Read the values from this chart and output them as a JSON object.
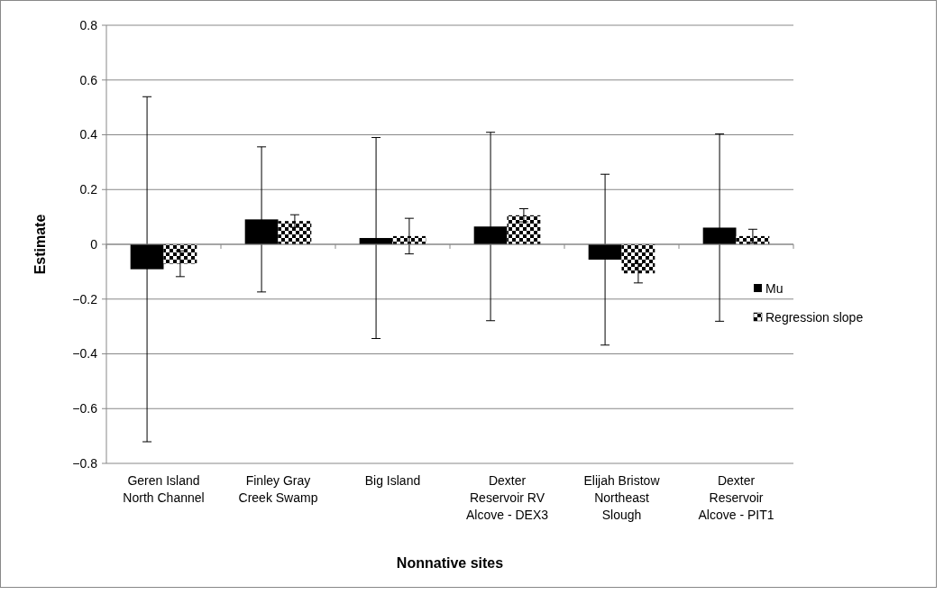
{
  "chart_data": {
    "type": "bar",
    "xlabel": "Nonnative sites",
    "ylabel": "Estimate",
    "categories": [
      "Geren Island North Channel",
      "Finley Gray Creek Swamp",
      "Big Island",
      "Dexter Reservoir RV Alcove - DEX3",
      "Elijah Bristow Northeast Slough",
      "Dexter Reservoir Alcove - PIT1"
    ],
    "series": [
      {
        "name": "Mu",
        "color": "#000000",
        "values": [
          -0.091,
          0.091,
          0.023,
          0.065,
          -0.056,
          0.061
        ],
        "errors": [
          0.63,
          0.265,
          0.367,
          0.344,
          0.312,
          0.342
        ]
      },
      {
        "name": "Regression slope",
        "color": "#000000",
        "values": [
          -0.071,
          0.085,
          0.03,
          0.106,
          -0.106,
          0.03
        ],
        "errors": [
          0.047,
          0.023,
          0.065,
          0.024,
          0.035,
          0.025
        ]
      }
    ],
    "ylim": [
      -0.8,
      0.8
    ],
    "yticks": [
      -0.8,
      -0.6,
      -0.4,
      -0.2,
      0,
      0.2,
      0.4,
      0.6,
      0.8
    ],
    "grid": "y",
    "legend": "right"
  }
}
